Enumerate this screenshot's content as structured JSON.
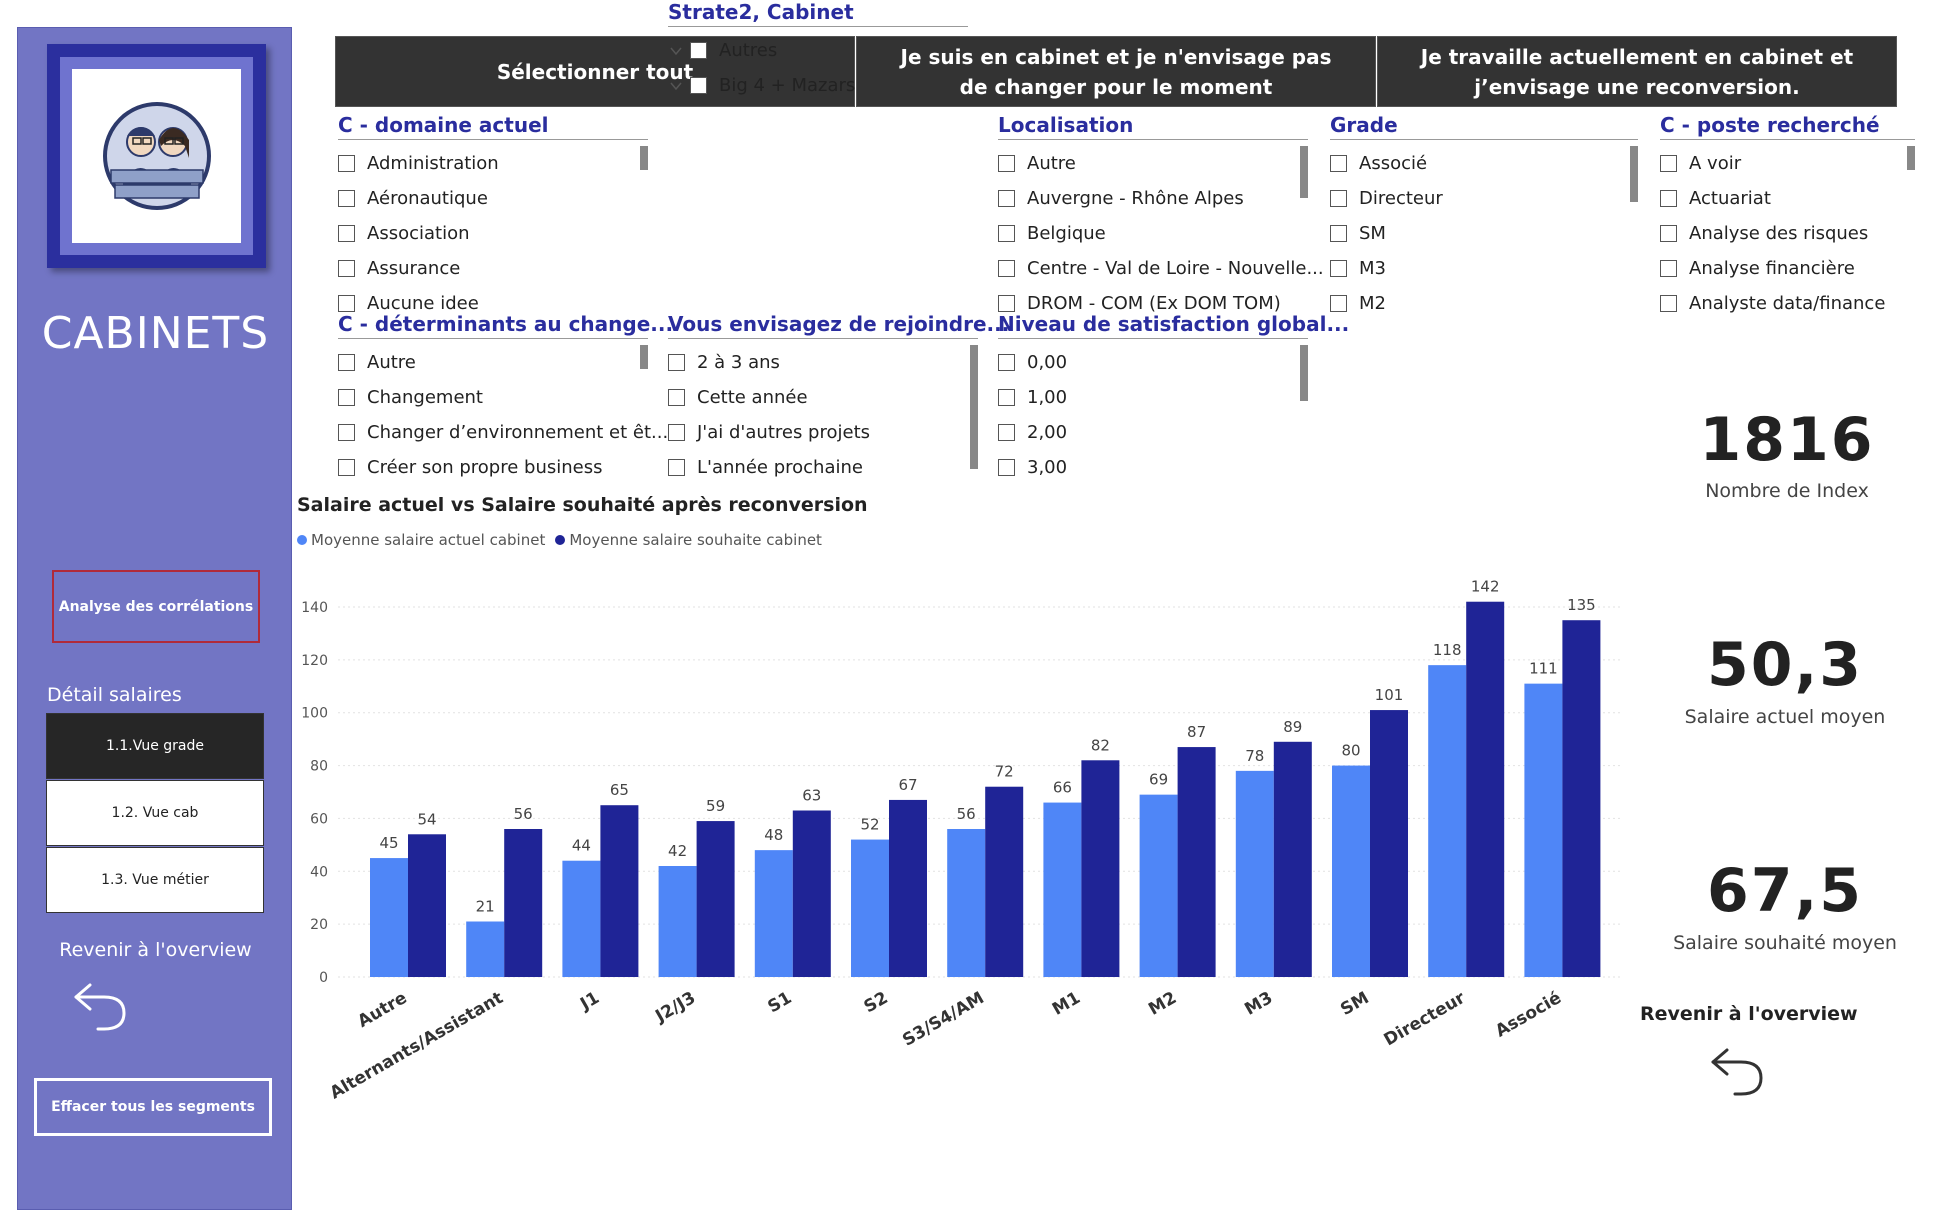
{
  "sidebar": {
    "title": "CABINETS",
    "correlations_button": "Analyse des corrélations",
    "detail_label": "Détail salaires",
    "nav": [
      "1.1.Vue grade",
      "1.2. Vue cab",
      "1.3. Vue métier"
    ],
    "overview_label": "Revenir à l'overview",
    "clear_button": "Effacer tous les segments",
    "logo_icon": "auditeurs-anonymes-logo"
  },
  "top_buttons": [
    "Sélectionner tout",
    "Je suis en cabinet et je n'envisage pas de changer pour le moment",
    "Je travaille actuellement en cabinet et j’envisage une reconversion."
  ],
  "slicers": {
    "domaine": {
      "title": "C - domaine actuel",
      "items": [
        "Administration",
        "Aéronautique",
        "Association",
        "Assurance",
        "Aucune idee"
      ]
    },
    "strate": {
      "title": "Strate2, Cabinet",
      "items": [
        "Autres",
        "Big 4 + Mazars"
      ]
    },
    "localisation": {
      "title": "Localisation",
      "items": [
        "Autre",
        "Auvergne - Rhône Alpes",
        "Belgique",
        "Centre - Val de Loire - Nouvelle...",
        "DROM - COM (Ex DOM TOM)"
      ]
    },
    "grade": {
      "title": "Grade",
      "items": [
        "Associé",
        "Directeur",
        "SM",
        "M3",
        "M2"
      ]
    },
    "poste": {
      "title": "C - poste recherché",
      "items": [
        "A voir",
        "Actuariat",
        "Analyse des risques",
        "Analyse financière",
        "Analyste data/finance"
      ]
    },
    "determinants": {
      "title": "C - déterminants au change...",
      "items": [
        "Autre",
        "Changement",
        "Changer d’environnement et êt...",
        "Créer son propre business"
      ]
    },
    "rejoindre": {
      "title": "Vous envisagez de rejoindre...",
      "items": [
        "2 à 3 ans",
        "Cette année",
        "J'ai d'autres projets",
        "L'année prochaine"
      ]
    },
    "satisfaction": {
      "title": "Niveau de satisfaction global...",
      "items": [
        "0,00",
        "1,00",
        "2,00",
        "3,00"
      ]
    }
  },
  "kpis": [
    {
      "value": "1816",
      "label": "Nombre de Index"
    },
    {
      "value": "50,3",
      "label": "Salaire actuel moyen"
    },
    {
      "value": "67,5",
      "label": "Salaire souhaité moyen"
    }
  ],
  "right_overview_label": "Revenir à l'overview",
  "chart_data": {
    "type": "bar",
    "title": "Salaire actuel vs Salaire souhaité après reconversion",
    "categories": [
      "Autre",
      "Alternants/Assistant",
      "J1",
      "J2/J3",
      "S1",
      "S2",
      "S3/S4/AM",
      "M1",
      "M2",
      "M3",
      "SM",
      "Directeur",
      "Associé"
    ],
    "series": [
      {
        "name": "Moyenne salaire actuel cabinet",
        "color": "#4f86f7",
        "values": [
          45,
          21,
          44,
          42,
          48,
          52,
          56,
          66,
          69,
          78,
          80,
          118,
          111
        ]
      },
      {
        "name": "Moyenne salaire souhaite cabinet",
        "color": "#1f2496",
        "values": [
          54,
          56,
          65,
          59,
          63,
          67,
          72,
          82,
          87,
          89,
          101,
          142,
          135
        ]
      }
    ],
    "ylim": [
      0,
      140
    ],
    "yticks": [
      0,
      20,
      40,
      60,
      80,
      100,
      120,
      140
    ],
    "legend": "top-left",
    "grid": true
  }
}
